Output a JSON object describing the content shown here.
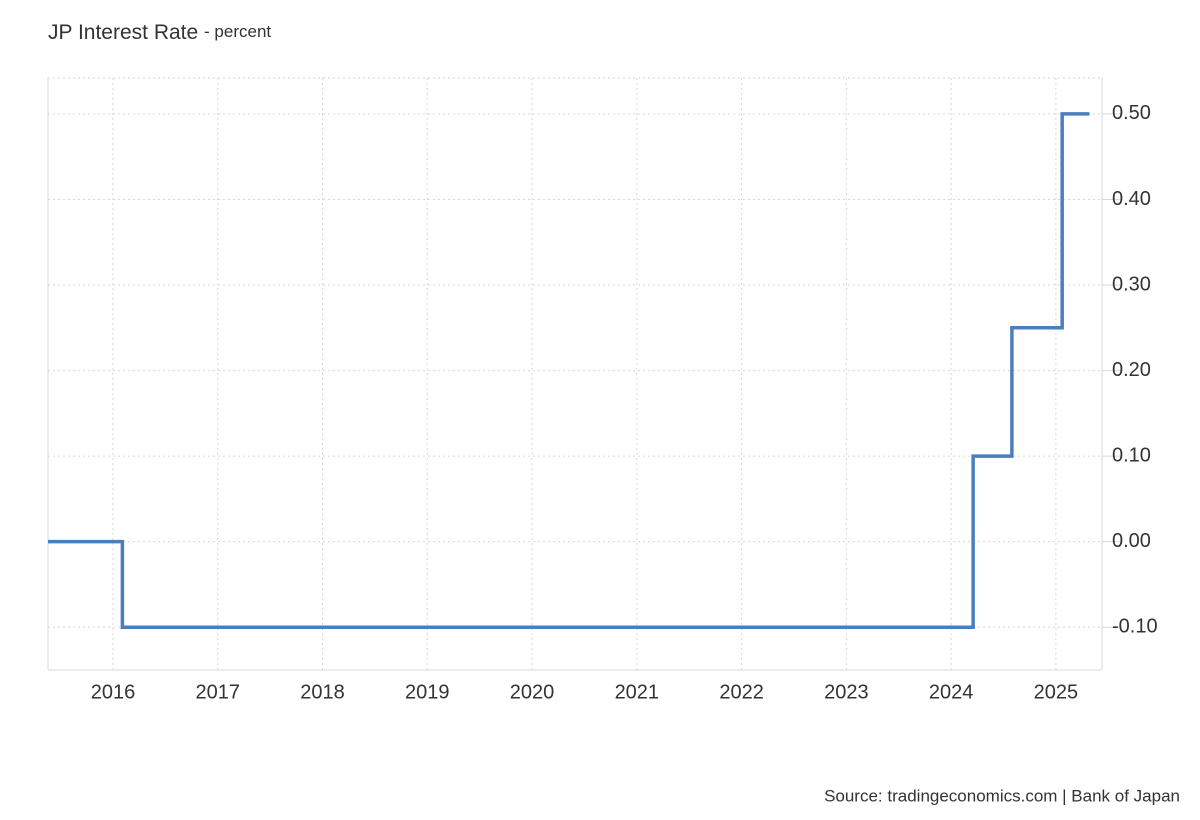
{
  "chart_data": {
    "type": "line",
    "title": "JP Interest Rate",
    "subtitle": "- percent",
    "source": "Source: tradingeconomics.com | Bank of Japan",
    "step": true,
    "x": [
      2015.38,
      2016.09,
      2016.09,
      2024.21,
      2024.21,
      2024.58,
      2024.58,
      2025.06,
      2025.06,
      2025.32
    ],
    "series": [
      {
        "name": "JP Interest Rate",
        "color": "#4a7fbd",
        "values": [
          0,
          0,
          -0.1,
          -0.1,
          0.1,
          0.1,
          0.25,
          0.25,
          0.5,
          0.5
        ]
      }
    ],
    "xlim": [
      2015.38,
      2025.44
    ],
    "xticks": [
      2016,
      2017,
      2018,
      2019,
      2020,
      2021,
      2022,
      2023,
      2024,
      2025
    ],
    "ylim": [
      -0.15,
      0.542
    ],
    "yticks": [
      {
        "value": -0.1,
        "label": "-0.10"
      },
      {
        "value": 0,
        "label": "0.00"
      },
      {
        "value": 0.1,
        "label": "0.10"
      },
      {
        "value": 0.2,
        "label": "0.20"
      },
      {
        "value": 0.3,
        "label": "0.30"
      },
      {
        "value": 0.4,
        "label": "0.40"
      },
      {
        "value": 0.5,
        "label": "0.50"
      }
    ],
    "grid": true
  }
}
